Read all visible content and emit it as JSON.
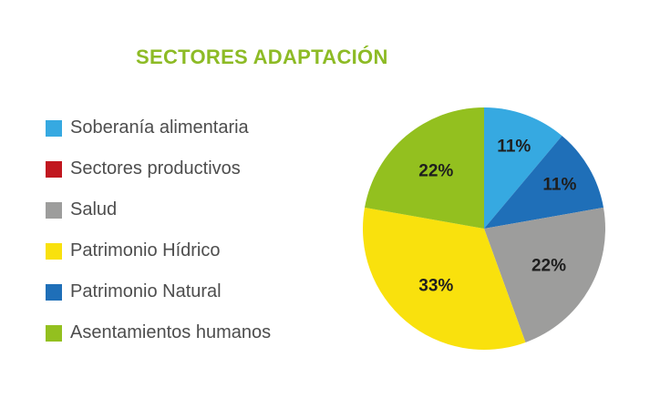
{
  "title": "SECTORES ADAPTACIÓN",
  "legend": [
    {
      "label": "Soberanía alimentaria",
      "color": "#36a9e1"
    },
    {
      "label": "Sectores productivos",
      "color": "#c1171f"
    },
    {
      "label": "Salud",
      "color": "#9d9d9c"
    },
    {
      "label": "Patrimonio Hídrico",
      "color": "#f9e10d"
    },
    {
      "label": "Patrimonio Natural",
      "color": "#1f6fb8"
    },
    {
      "label": "Asentamientos humanos",
      "color": "#93c01f"
    }
  ],
  "chart_data": {
    "type": "pie",
    "title": "SECTORES ADAPTACIÓN",
    "legend_position": "left",
    "slices": [
      {
        "name": "Soberanía alimentaria",
        "value": 11,
        "label": "11%",
        "color": "#36a9e1"
      },
      {
        "name": "Patrimonio Natural",
        "value": 11,
        "label": "11%",
        "color": "#1f6fb8"
      },
      {
        "name": "Salud",
        "value": 22,
        "label": "22%",
        "color": "#9d9d9c"
      },
      {
        "name": "Patrimonio Hídrico",
        "value": 33,
        "label": "33%",
        "color": "#f9e10d"
      },
      {
        "name": "Asentamientos humanos",
        "value": 22,
        "label": "22%",
        "color": "#93c01f"
      }
    ]
  }
}
